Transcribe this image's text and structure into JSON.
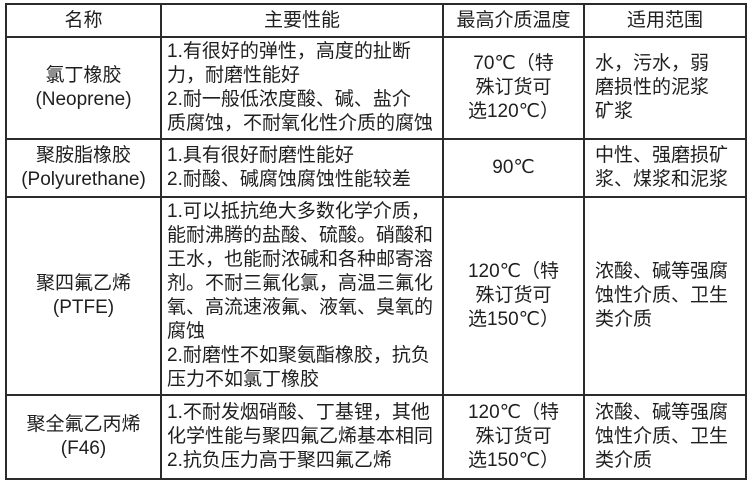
{
  "table": {
    "headers": [
      "名称",
      "主要性能",
      "最高介质温度",
      "适用范围"
    ],
    "rows": [
      {
        "name": "氯丁橡胶\n(Neoprene)",
        "performance": "1.有很好的弹性，高度的扯断\n力，耐磨性能好\n2.耐一般低浓度酸、碱、盐介\n质腐蚀，不耐氧化性介质的腐蚀",
        "max_temp": "70℃（特\n殊订货可\n选120℃）",
        "application": "水，污水，弱\n磨损性的泥浆\n矿浆"
      },
      {
        "name": "聚胺脂橡胶\n(Polyurethane)",
        "performance": "1.具有很好耐磨性能好\n2.耐酸、碱腐蚀腐蚀性能较差",
        "max_temp": "90℃",
        "application": "中性、强磨损矿\n浆、煤浆和泥浆"
      },
      {
        "name": "聚四氟乙烯\n(PTFE)",
        "performance": "1.可以抵抗绝大多数化学介质，\n能耐沸腾的盐酸、硫酸。硝酸和\n王水，也能耐浓碱和各种邮寄溶\n剂。不耐三氟化氯，高温三氟化\n氧、高流速液氟、液氧、臭氧的\n腐蚀\n2.耐磨性不如聚氨酯橡胶，抗负\n压力不如氯丁橡胶",
        "max_temp": "120℃（特\n殊订货可\n选150℃）",
        "application": "浓酸、碱等强腐\n蚀性介质、卫生\n类介质"
      },
      {
        "name": "聚全氟乙丙烯\n(F46)",
        "performance": "1.不耐发烟硝酸、丁基锂，其他\n化学性能与聚四氟乙烯基本相同\n2.抗负压力高于聚四氟乙烯",
        "max_temp": "120℃（特\n殊订货可\n选150℃）",
        "application": "浓酸、碱等强腐\n蚀性介质、卫生\n类介质"
      }
    ]
  }
}
